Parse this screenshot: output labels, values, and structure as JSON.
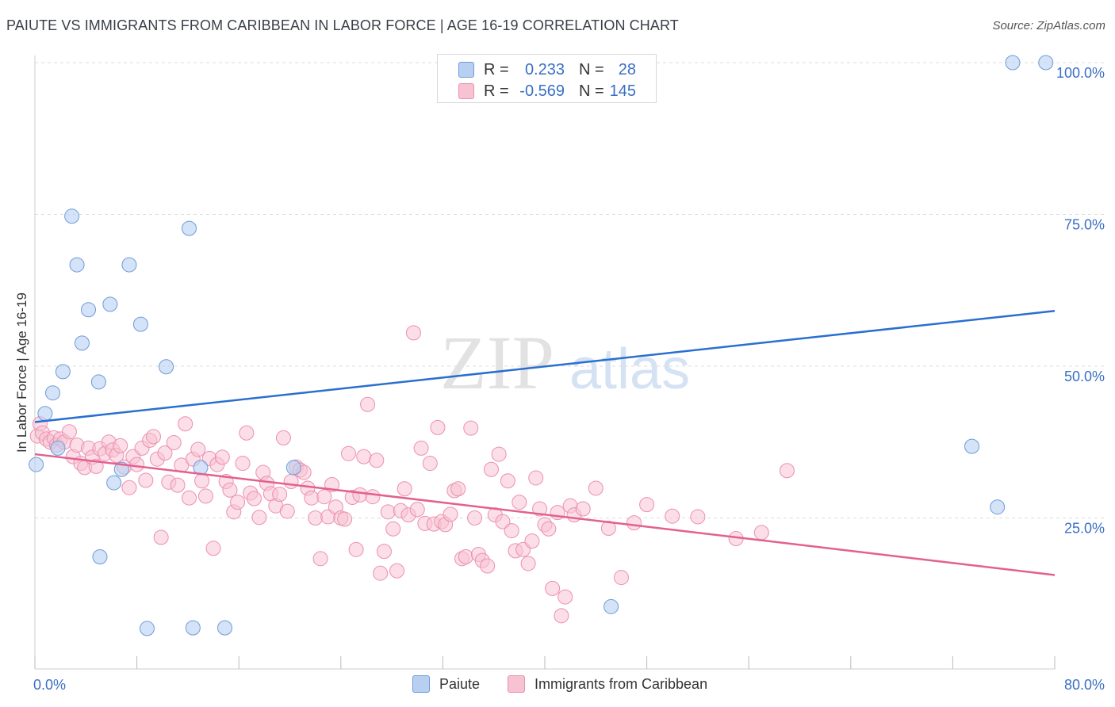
{
  "title": "PAIUTE VS IMMIGRANTS FROM CARIBBEAN IN LABOR FORCE | AGE 16-19 CORRELATION CHART",
  "source": "Source: ZipAtlas.com",
  "watermark": {
    "zip": "ZIP",
    "atlas": "atlas"
  },
  "legend": {
    "rows": [
      {
        "r_label": "R =",
        "r_value": "0.233",
        "n_label": "N =",
        "n_value": "28"
      },
      {
        "r_label": "R =",
        "r_value": "-0.569",
        "n_label": "N =",
        "n_value": "145"
      }
    ]
  },
  "bottom_legend": {
    "series_a": "Paiute",
    "series_b": "Immigrants from Caribbean"
  },
  "colors": {
    "blue_fill": "#b7d0f2",
    "blue_stroke": "#6e9bd8",
    "blue_line": "#2a6fcf",
    "pink_fill": "#f7c3d3",
    "pink_stroke": "#ec90ae",
    "pink_line": "#e3608f",
    "axis_text": "#3a6fc4",
    "grid": "#dddddd"
  },
  "chart_data": {
    "type": "scatter",
    "title": "PAIUTE VS IMMIGRANTS FROM CARIBBEAN IN LABOR FORCE | AGE 16-19 CORRELATION CHART",
    "xlabel": "",
    "ylabel": "In Labor Force | Age 16-19",
    "xlim": [
      0,
      80
    ],
    "ylim": [
      0,
      102
    ],
    "x_tick_labels": [
      "0.0%",
      "80.0%"
    ],
    "y_ticks": [
      25,
      50,
      75,
      100
    ],
    "y_tick_labels": [
      "25.0%",
      "50.0%",
      "75.0%",
      "100.0%"
    ],
    "grid": true,
    "legend_position": "top-center",
    "series": [
      {
        "name": "Paiute",
        "r": 0.233,
        "n": 28,
        "trend": {
          "x0": 0,
          "y0": 40.8,
          "x1": 80,
          "y1": 59.1
        },
        "points": [
          [
            0.1,
            33.8
          ],
          [
            0.8,
            42.2
          ],
          [
            1.4,
            45.6
          ],
          [
            1.8,
            36.5
          ],
          [
            2.2,
            49.1
          ],
          [
            2.9,
            74.7
          ],
          [
            3.3,
            66.7
          ],
          [
            3.7,
            53.8
          ],
          [
            4.2,
            59.3
          ],
          [
            5.0,
            47.4
          ],
          [
            5.9,
            60.2
          ],
          [
            6.2,
            30.8
          ],
          [
            6.8,
            33.0
          ],
          [
            7.4,
            66.7
          ],
          [
            8.3,
            56.9
          ],
          [
            8.8,
            6.8
          ],
          [
            10.3,
            49.9
          ],
          [
            12.1,
            72.7
          ],
          [
            13.0,
            33.3
          ],
          [
            20.3,
            33.3
          ],
          [
            5.1,
            18.6
          ],
          [
            12.4,
            6.9
          ],
          [
            14.9,
            6.9
          ],
          [
            45.2,
            10.4
          ],
          [
            73.5,
            36.8
          ],
          [
            75.5,
            26.8
          ],
          [
            76.7,
            100.0
          ],
          [
            79.3,
            100.0
          ]
        ]
      },
      {
        "name": "Immigrants from Caribbean",
        "r": -0.569,
        "n": 145,
        "trend": {
          "x0": 0,
          "y0": 35.5,
          "x1": 80,
          "y1": 15.6
        },
        "points": [
          [
            0.2,
            38.5
          ],
          [
            0.4,
            40.5
          ],
          [
            0.6,
            39.0
          ],
          [
            0.9,
            38.0
          ],
          [
            1.2,
            37.5
          ],
          [
            1.5,
            38.2
          ],
          [
            1.7,
            37.0
          ],
          [
            2.0,
            38.0
          ],
          [
            2.3,
            37.5
          ],
          [
            2.7,
            39.2
          ],
          [
            3.0,
            35.1
          ],
          [
            3.3,
            37.0
          ],
          [
            3.6,
            34.0
          ],
          [
            3.9,
            33.3
          ],
          [
            4.2,
            36.5
          ],
          [
            4.5,
            35.0
          ],
          [
            4.8,
            33.5
          ],
          [
            5.1,
            36.4
          ],
          [
            5.5,
            35.6
          ],
          [
            5.8,
            37.5
          ],
          [
            6.1,
            36.2
          ],
          [
            6.4,
            35.3
          ],
          [
            6.7,
            36.9
          ],
          [
            7.0,
            33.4
          ],
          [
            7.4,
            30.0
          ],
          [
            7.7,
            35.1
          ],
          [
            8.0,
            33.8
          ],
          [
            8.4,
            36.5
          ],
          [
            8.7,
            31.2
          ],
          [
            9.0,
            37.8
          ],
          [
            9.3,
            38.4
          ],
          [
            9.6,
            34.7
          ],
          [
            9.9,
            21.8
          ],
          [
            10.2,
            35.7
          ],
          [
            10.5,
            30.9
          ],
          [
            10.9,
            37.4
          ],
          [
            11.2,
            30.4
          ],
          [
            11.5,
            33.7
          ],
          [
            11.8,
            40.5
          ],
          [
            12.1,
            28.3
          ],
          [
            12.4,
            34.7
          ],
          [
            12.8,
            36.3
          ],
          [
            13.1,
            31.1
          ],
          [
            13.4,
            28.6
          ],
          [
            13.7,
            34.8
          ],
          [
            14.0,
            20.0
          ],
          [
            14.3,
            33.8
          ],
          [
            14.7,
            35.0
          ],
          [
            15.0,
            31.0
          ],
          [
            15.3,
            29.6
          ],
          [
            15.6,
            26.0
          ],
          [
            15.9,
            27.6
          ],
          [
            16.3,
            34.0
          ],
          [
            16.6,
            39.0
          ],
          [
            16.9,
            29.1
          ],
          [
            17.2,
            28.2
          ],
          [
            17.6,
            25.1
          ],
          [
            17.9,
            32.5
          ],
          [
            18.2,
            30.7
          ],
          [
            18.5,
            29.0
          ],
          [
            18.9,
            27.0
          ],
          [
            19.2,
            28.9
          ],
          [
            19.5,
            38.2
          ],
          [
            19.8,
            26.1
          ],
          [
            20.1,
            31.0
          ],
          [
            20.5,
            33.4
          ],
          [
            20.8,
            32.9
          ],
          [
            21.1,
            32.5
          ],
          [
            21.4,
            29.9
          ],
          [
            21.7,
            28.3
          ],
          [
            22.0,
            25.0
          ],
          [
            22.4,
            18.3
          ],
          [
            22.7,
            28.5
          ],
          [
            23.0,
            25.2
          ],
          [
            23.3,
            30.5
          ],
          [
            23.6,
            26.8
          ],
          [
            24.0,
            25.0
          ],
          [
            24.3,
            24.8
          ],
          [
            24.6,
            35.6
          ],
          [
            24.9,
            28.4
          ],
          [
            25.2,
            19.8
          ],
          [
            25.5,
            28.8
          ],
          [
            25.8,
            35.1
          ],
          [
            26.1,
            43.7
          ],
          [
            26.5,
            28.5
          ],
          [
            26.8,
            34.5
          ],
          [
            27.1,
            15.9
          ],
          [
            27.4,
            19.5
          ],
          [
            27.7,
            26.0
          ],
          [
            28.1,
            23.2
          ],
          [
            28.4,
            16.3
          ],
          [
            28.7,
            26.2
          ],
          [
            29.0,
            29.8
          ],
          [
            29.3,
            25.5
          ],
          [
            29.7,
            55.5
          ],
          [
            30.0,
            26.4
          ],
          [
            30.3,
            36.5
          ],
          [
            30.6,
            24.1
          ],
          [
            31.0,
            34.0
          ],
          [
            31.3,
            24.0
          ],
          [
            31.6,
            39.9
          ],
          [
            31.9,
            24.4
          ],
          [
            32.2,
            23.9
          ],
          [
            32.6,
            25.6
          ],
          [
            32.9,
            29.5
          ],
          [
            33.2,
            29.8
          ],
          [
            33.5,
            18.3
          ],
          [
            33.8,
            18.6
          ],
          [
            34.2,
            39.8
          ],
          [
            34.5,
            25.0
          ],
          [
            34.8,
            19.0
          ],
          [
            35.1,
            18.0
          ],
          [
            35.5,
            17.1
          ],
          [
            35.8,
            33.0
          ],
          [
            36.1,
            25.5
          ],
          [
            36.4,
            35.5
          ],
          [
            36.7,
            24.4
          ],
          [
            37.1,
            31.1
          ],
          [
            37.4,
            22.9
          ],
          [
            37.7,
            19.6
          ],
          [
            38.0,
            27.6
          ],
          [
            38.3,
            19.8
          ],
          [
            38.7,
            17.5
          ],
          [
            39.0,
            21.2
          ],
          [
            39.3,
            31.6
          ],
          [
            39.6,
            26.5
          ],
          [
            40.0,
            23.9
          ],
          [
            40.3,
            23.2
          ],
          [
            40.6,
            13.4
          ],
          [
            41.0,
            25.9
          ],
          [
            41.3,
            8.9
          ],
          [
            41.6,
            12.0
          ],
          [
            42.0,
            27.0
          ],
          [
            42.3,
            25.5
          ],
          [
            43.0,
            26.5
          ],
          [
            44.0,
            29.9
          ],
          [
            45.0,
            23.3
          ],
          [
            46.0,
            15.2
          ],
          [
            47.0,
            24.2
          ],
          [
            48.0,
            27.2
          ],
          [
            50.0,
            25.3
          ],
          [
            52.0,
            25.2
          ],
          [
            55.0,
            21.6
          ],
          [
            57.0,
            22.6
          ],
          [
            59.0,
            32.8
          ]
        ]
      }
    ]
  }
}
